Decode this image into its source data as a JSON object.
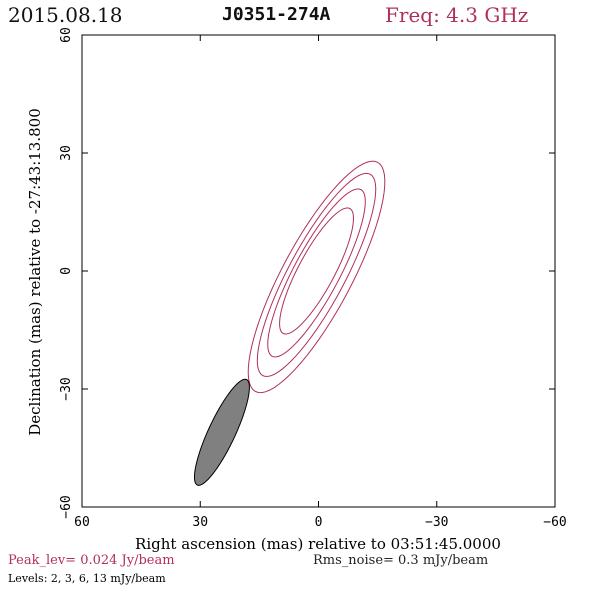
{
  "header": {
    "date": "2015.08.18",
    "source": "J0351-274A",
    "freq": "Freq: 4.3 GHz"
  },
  "footer": {
    "peak": "Peak_lev=  0.024 Jy/beam",
    "rms": "Rms_noise=   0.3 mJy/beam",
    "levels": "Levels:   2,   3,   6,   13 mJy/beam"
  },
  "colors": {
    "contour": "#b0305a",
    "beam_fill": "#808080",
    "accent": "#b0305a"
  },
  "chart_data": {
    "type": "contour",
    "xlabel": "Right ascension (mas) relative to 03:51:45.0000",
    "ylabel": "Declination (mas) relative to -27:43:13.800",
    "xlim": [
      60,
      -60
    ],
    "ylim": [
      -60,
      60
    ],
    "xticks": [
      60,
      30,
      0,
      -30,
      -60
    ],
    "yticks": [
      -60,
      -30,
      0,
      30,
      60
    ],
    "xtick_labels": [
      "60",
      "30",
      "0",
      "−30",
      "−60"
    ],
    "ytick_labels": [
      "−60",
      "−30",
      "0",
      "30",
      "60"
    ],
    "contour_levels_mJy": [
      2,
      3,
      6,
      13
    ],
    "contours": [
      {
        "level": 2,
        "cx": 0.5,
        "cy": -1.5,
        "a": 33.0,
        "b": 8.8,
        "pa_deg": 152
      },
      {
        "level": 3,
        "cx": 0.5,
        "cy": -1.0,
        "a": 29.0,
        "b": 7.2,
        "pa_deg": 152
      },
      {
        "level": 6,
        "cx": 0.5,
        "cy": -0.5,
        "a": 24.0,
        "b": 5.8,
        "pa_deg": 152
      },
      {
        "level": 13,
        "cx": 0.5,
        "cy": 0.0,
        "a": 18.0,
        "b": 4.6,
        "pa_deg": 152
      }
    ],
    "beam": {
      "cx": 24.5,
      "cy": -41.0,
      "a": 14.8,
      "b": 3.4,
      "pa_deg": 155
    }
  }
}
